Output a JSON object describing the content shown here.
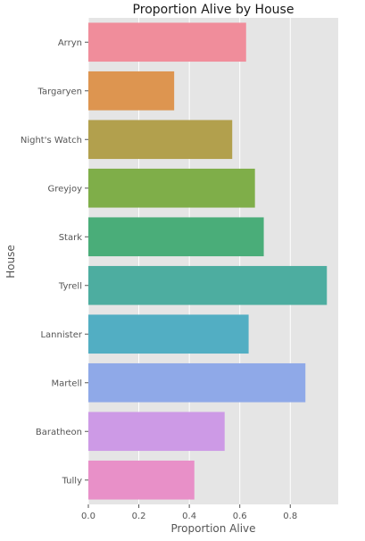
{
  "chart_data": {
    "type": "bar",
    "orientation": "horizontal",
    "title": "Proportion Alive by House",
    "xlabel": "Proportion Alive",
    "ylabel": "House",
    "categories": [
      "Arryn",
      "Targaryen",
      "Night's Watch",
      "Greyjoy",
      "Stark",
      "Tyrell",
      "Lannister",
      "Martell",
      "Baratheon",
      "Tully"
    ],
    "values": [
      0.625,
      0.34,
      0.57,
      0.66,
      0.695,
      0.945,
      0.635,
      0.86,
      0.54,
      0.42
    ],
    "colors": [
      "#f08d9b",
      "#dd9550",
      "#b2a04d",
      "#7fae49",
      "#4aad79",
      "#4dada0",
      "#52aec3",
      "#8fa9e8",
      "#cd9ae6",
      "#e890c8"
    ],
    "xlim": [
      0,
      0.99
    ],
    "xticks": [
      "0.0",
      "0.2",
      "0.4",
      "0.6",
      "0.8"
    ],
    "xtick_values": [
      0,
      0.2,
      0.4,
      0.6,
      0.8
    ],
    "grid": true,
    "background_color": "#e5e5e5",
    "grid_color": "#ffffff"
  }
}
